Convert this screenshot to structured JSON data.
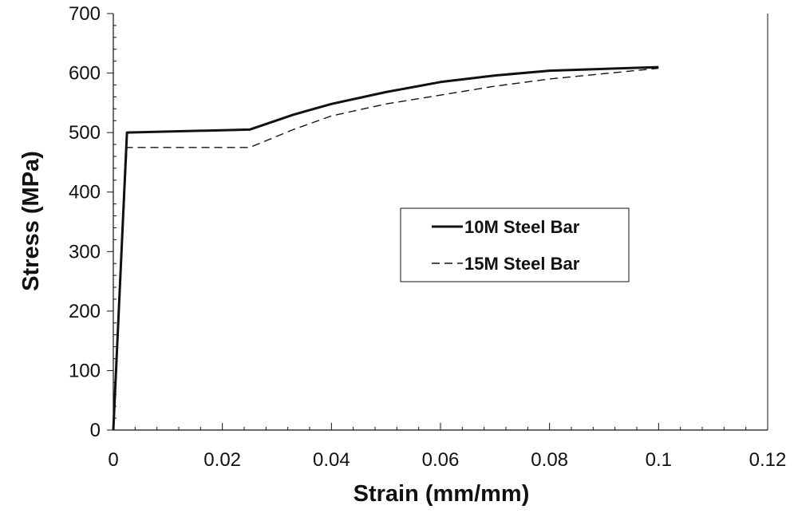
{
  "chart_data": {
    "type": "line",
    "xlabel": "Strain (mm/mm)",
    "ylabel": "Stress (MPa)",
    "xlim": [
      0,
      0.12
    ],
    "ylim": [
      0,
      700
    ],
    "x_ticks": [
      0,
      0.02,
      0.04,
      0.06,
      0.08,
      0.1,
      0.12
    ],
    "x_tick_labels": [
      "0",
      "0.02",
      "0.04",
      "0.06",
      "0.08",
      "0.1",
      "0.12"
    ],
    "y_ticks": [
      0,
      100,
      200,
      300,
      400,
      500,
      600,
      700
    ],
    "y_tick_labels": [
      "0",
      "100",
      "200",
      "300",
      "400",
      "500",
      "600",
      "700"
    ],
    "grid": false,
    "legend_position": "right-center",
    "series": [
      {
        "name": "10M Steel Bar",
        "style": "solid",
        "color": "#111111",
        "points": [
          [
            0,
            0
          ],
          [
            0.0025,
            500
          ],
          [
            0.025,
            505
          ],
          [
            0.033,
            530
          ],
          [
            0.04,
            548
          ],
          [
            0.05,
            568
          ],
          [
            0.06,
            585
          ],
          [
            0.07,
            596
          ],
          [
            0.08,
            604
          ],
          [
            0.1,
            610
          ]
        ]
      },
      {
        "name": "15M Steel Bar",
        "style": "dashed",
        "color": "#111111",
        "points": [
          [
            0,
            0
          ],
          [
            0.0025,
            475
          ],
          [
            0.025,
            475
          ],
          [
            0.033,
            505
          ],
          [
            0.04,
            528
          ],
          [
            0.05,
            548
          ],
          [
            0.06,
            563
          ],
          [
            0.07,
            578
          ],
          [
            0.08,
            590
          ],
          [
            0.1,
            608
          ]
        ]
      }
    ]
  }
}
